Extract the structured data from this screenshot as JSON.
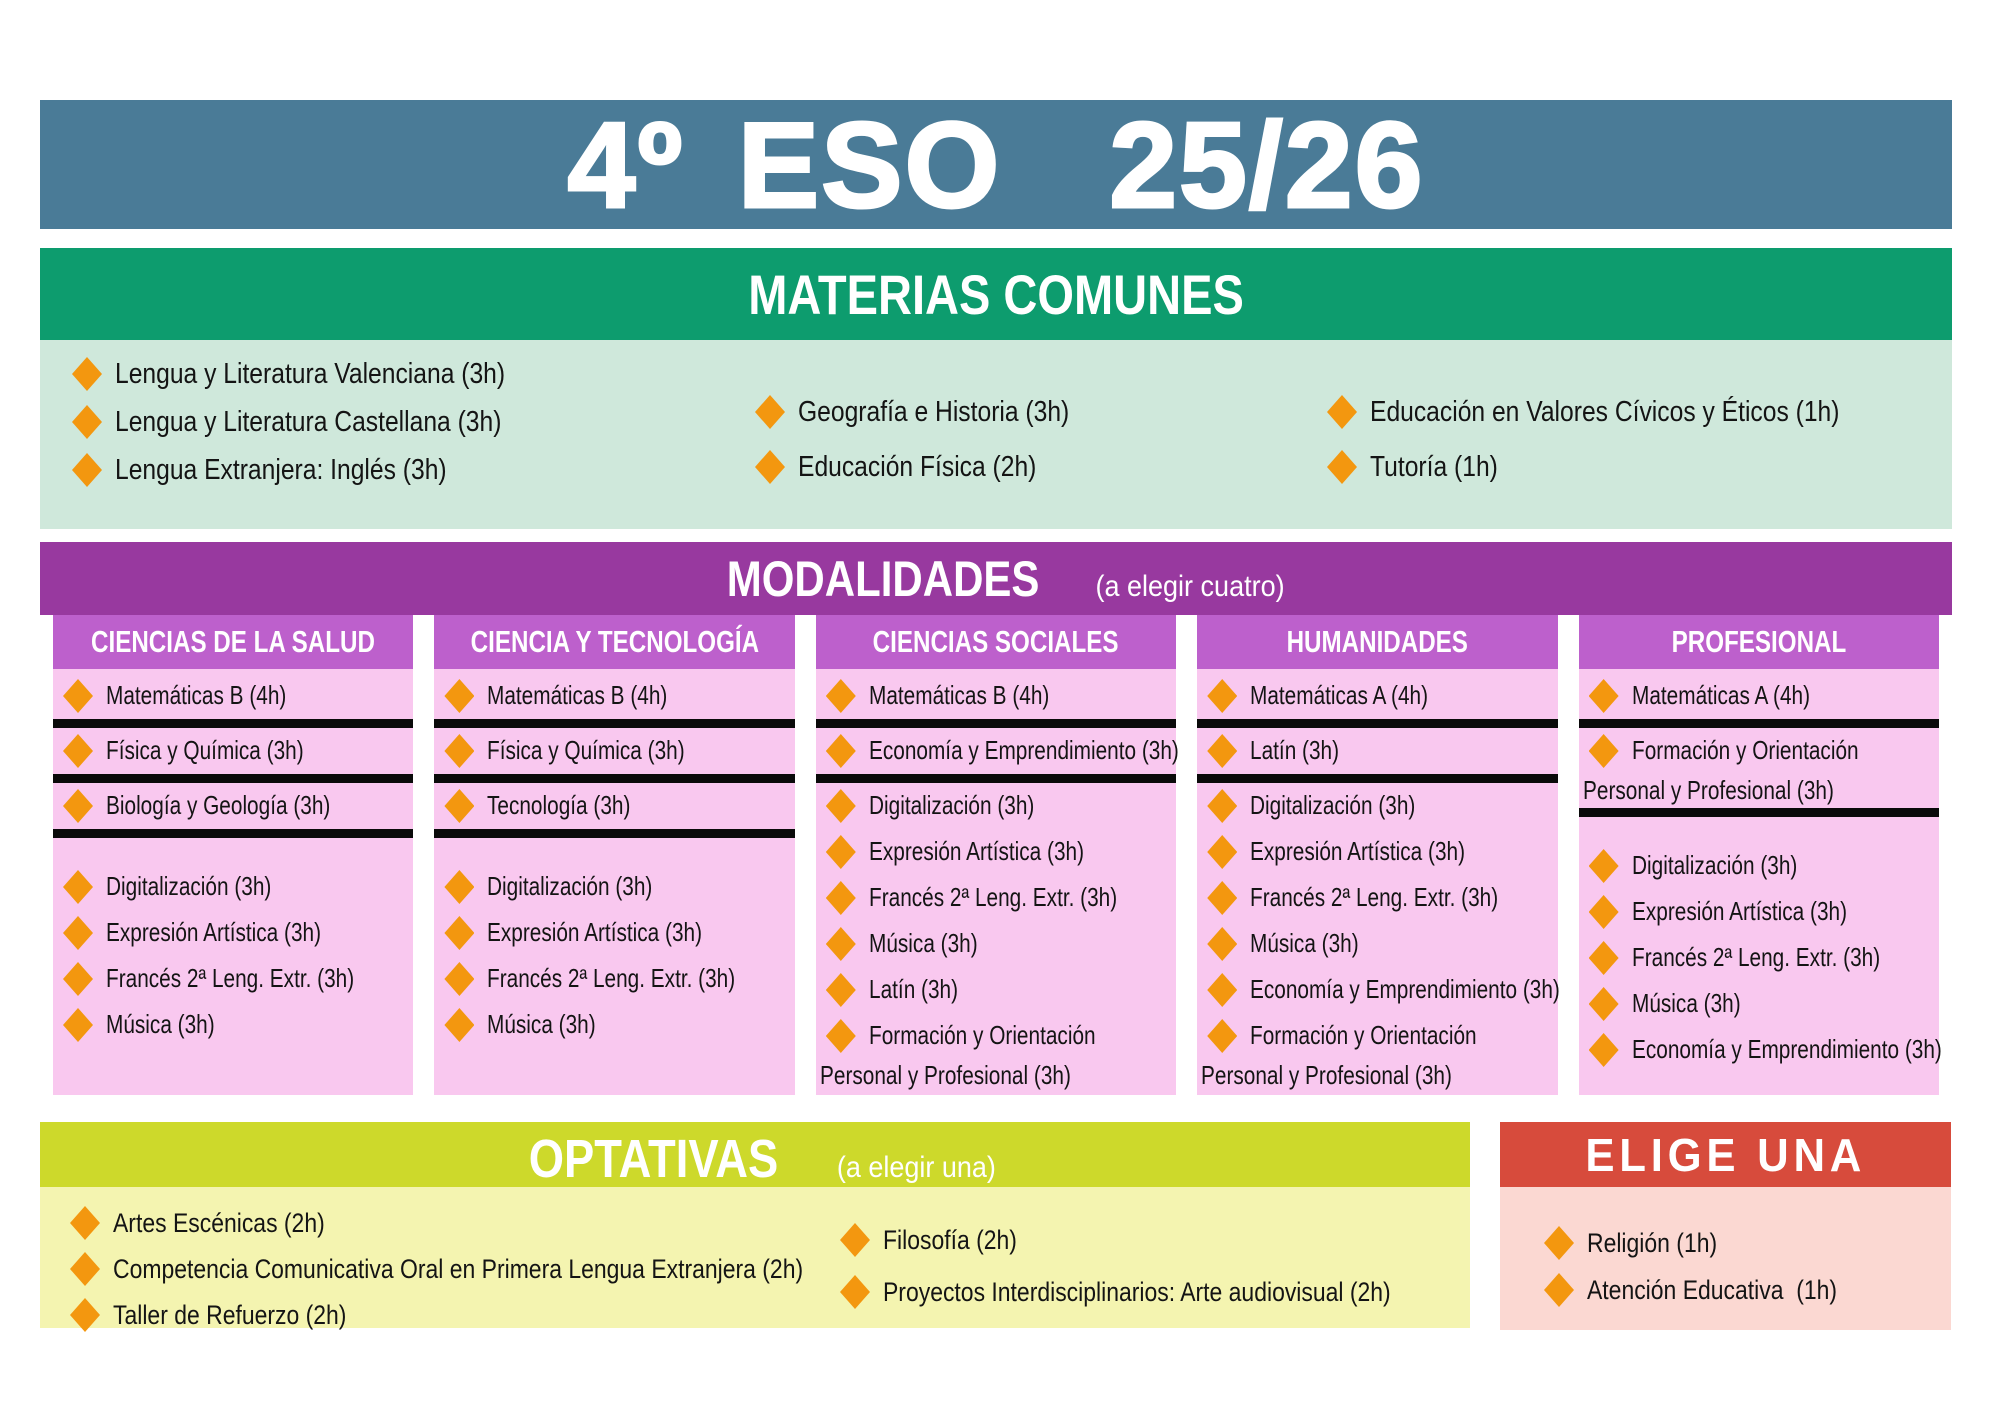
{
  "page": {
    "title": "4º ESO  25/26"
  },
  "colors": {
    "title_bar": "#4a7b97",
    "comunes_header": "#0d9c6e",
    "comunes_body": "#cfe8db",
    "modalidades_header": "#98399f",
    "modality_column_header": "#bd60cc",
    "modality_column_body": "#f9c8ef",
    "optativas_header": "#cdd92b",
    "optativas_body": "#f4f4b0",
    "elige_header": "#d74b3c",
    "elige_body": "#fbd8d2",
    "bullet_orange": "#f3970f",
    "divider_black": "#0a0a0a",
    "header_text": "#ffffff",
    "item_text": "#141414"
  },
  "comunes": {
    "header": "MATERIAS COMUNES",
    "col1": [
      "Lengua y Literatura Valenciana (3h)",
      "Lengua y Literatura Castellana (3h)",
      "Lengua Extranjera: Inglés (3h)"
    ],
    "col2": [
      "Geografía e Historia (3h)",
      "Educación Física (2h)"
    ],
    "col3": [
      "Educación en Valores Cívicos y Éticos (1h)",
      "Tutoría (1h)"
    ]
  },
  "modalidades": {
    "header": "MODALIDADES",
    "header_note": "(a elegir cuatro)",
    "columns": [
      {
        "title": "CIENCIAS DE LA SALUD",
        "rows": [
          {
            "type": "item",
            "label": "Matemáticas B (4h)"
          },
          {
            "type": "divider"
          },
          {
            "type": "item",
            "label": "Física y Química (3h)"
          },
          {
            "type": "divider"
          },
          {
            "type": "item",
            "label": "Biología y Geología (3h)"
          },
          {
            "type": "divider"
          },
          {
            "type": "spacer"
          },
          {
            "type": "item",
            "label": "Digitalización (3h)"
          },
          {
            "type": "item",
            "label": "Expresión Artística (3h)"
          },
          {
            "type": "item",
            "label": "Francés 2ª Leng. Extr. (3h)"
          },
          {
            "type": "item",
            "label": "Música (3h)"
          }
        ]
      },
      {
        "title": "CIENCIA Y TECNOLOGÍA",
        "rows": [
          {
            "type": "item",
            "label": "Matemáticas B (4h)"
          },
          {
            "type": "divider"
          },
          {
            "type": "item",
            "label": "Física y Química (3h)"
          },
          {
            "type": "divider"
          },
          {
            "type": "item",
            "label": "Tecnología (3h)"
          },
          {
            "type": "divider"
          },
          {
            "type": "spacer"
          },
          {
            "type": "item",
            "label": "Digitalización (3h)"
          },
          {
            "type": "item",
            "label": "Expresión Artística (3h)"
          },
          {
            "type": "item",
            "label": "Francés 2ª Leng. Extr. (3h)"
          },
          {
            "type": "item",
            "label": "Música (3h)"
          }
        ]
      },
      {
        "title": "CIENCIAS SOCIALES",
        "rows": [
          {
            "type": "item",
            "label": "Matemáticas B (4h)"
          },
          {
            "type": "divider"
          },
          {
            "type": "item",
            "label": "Economía y Emprendimiento (3h)"
          },
          {
            "type": "divider"
          },
          {
            "type": "item",
            "label": "Digitalización (3h)"
          },
          {
            "type": "item",
            "label": "Expresión Artística (3h)"
          },
          {
            "type": "item",
            "label": "Francés 2ª Leng. Extr. (3h)"
          },
          {
            "type": "item",
            "label": "Música (3h)"
          },
          {
            "type": "item",
            "label": "Latín (3h)"
          },
          {
            "type": "item",
            "label": "Formación y Orientación"
          },
          {
            "type": "cont",
            "label": "Personal y Profesional (3h)"
          }
        ]
      },
      {
        "title": "HUMANIDADES",
        "rows": [
          {
            "type": "item",
            "label": "Matemáticas A (4h)"
          },
          {
            "type": "divider"
          },
          {
            "type": "item",
            "label": "Latín (3h)"
          },
          {
            "type": "divider"
          },
          {
            "type": "item",
            "label": "Digitalización (3h)"
          },
          {
            "type": "item",
            "label": "Expresión Artística (3h)"
          },
          {
            "type": "item",
            "label": "Francés 2ª Leng. Extr. (3h)"
          },
          {
            "type": "item",
            "label": "Música (3h)"
          },
          {
            "type": "item",
            "label": "Economía y Emprendimiento (3h)"
          },
          {
            "type": "item",
            "label": "Formación y Orientación"
          },
          {
            "type": "cont",
            "label": "Personal y Profesional (3h)"
          }
        ]
      },
      {
        "title": "PROFESIONAL",
        "rows": [
          {
            "type": "item",
            "label": "Matemáticas A (4h)"
          },
          {
            "type": "divider"
          },
          {
            "type": "item",
            "label": "Formación y Orientación"
          },
          {
            "type": "cont",
            "label": "Personal y Profesional (3h)"
          },
          {
            "type": "divider"
          },
          {
            "type": "spacer"
          },
          {
            "type": "item",
            "label": "Digitalización (3h)"
          },
          {
            "type": "item",
            "label": "Expresión Artística (3h)"
          },
          {
            "type": "item",
            "label": "Francés 2ª Leng. Extr. (3h)"
          },
          {
            "type": "item",
            "label": "Música (3h)"
          },
          {
            "type": "item",
            "label": "Economía y Emprendimiento (3h)"
          }
        ]
      }
    ]
  },
  "optativas": {
    "header": "OPTATIVAS",
    "header_note": "(a elegir una)",
    "col1": [
      "Artes Escénicas (2h)",
      "Competencia Comunicativa Oral en Primera Lengua Extranjera (2h)",
      "Taller de Refuerzo (2h)"
    ],
    "col2": [
      "Filosofía (2h)",
      "Proyectos Interdisciplinarios: Arte audiovisual (2h)"
    ]
  },
  "elige": {
    "header": "ELIGE UNA",
    "items": [
      "Religión (1h)",
      "Atención Educativa  (1h)"
    ]
  }
}
